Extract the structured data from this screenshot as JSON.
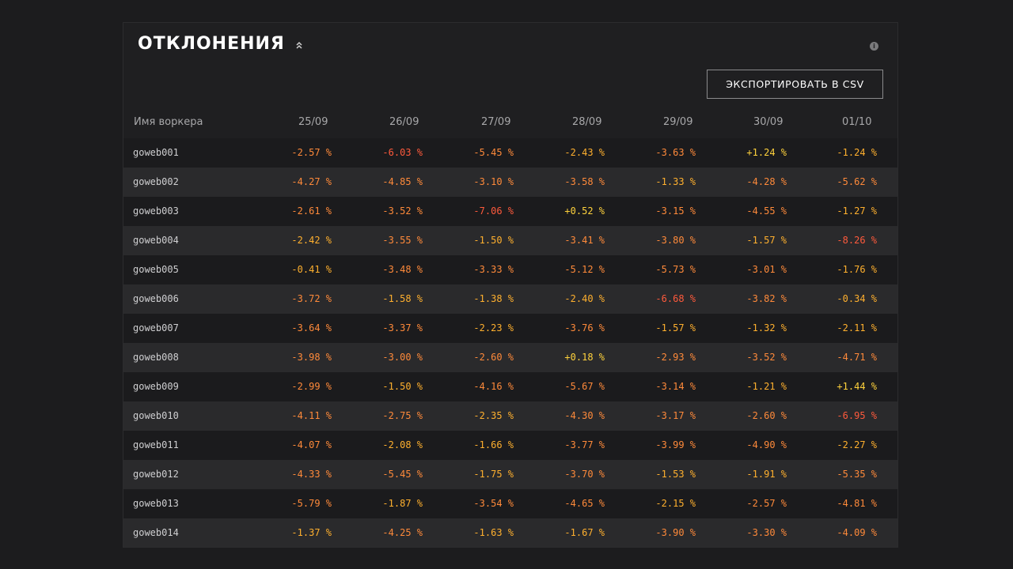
{
  "panel": {
    "title": "ОТКЛОНЕНИЯ",
    "export_label": "ЭКСПОРТИРОВАТЬ В CSV",
    "info_glyph": "i"
  },
  "table": {
    "name_header": "Имя воркера",
    "dates": [
      "25/09",
      "26/09",
      "27/09",
      "28/09",
      "29/09",
      "30/09",
      "01/10"
    ],
    "rows": [
      {
        "name": "goweb001",
        "values": [
          "-2.57 %",
          "-6.03 %",
          "-5.45 %",
          "-2.43 %",
          "-3.63 %",
          "+1.24 %",
          "-1.24 %"
        ]
      },
      {
        "name": "goweb002",
        "values": [
          "-4.27 %",
          "-4.85 %",
          "-3.10 %",
          "-3.58 %",
          "-1.33 %",
          "-4.28 %",
          "-5.62 %"
        ]
      },
      {
        "name": "goweb003",
        "values": [
          "-2.61 %",
          "-3.52 %",
          "-7.06 %",
          "+0.52 %",
          "-3.15 %",
          "-4.55 %",
          "-1.27 %"
        ]
      },
      {
        "name": "goweb004",
        "values": [
          "-2.42 %",
          "-3.55 %",
          "-1.50 %",
          "-3.41 %",
          "-3.80 %",
          "-1.57 %",
          "-8.26 %"
        ]
      },
      {
        "name": "goweb005",
        "values": [
          "-0.41 %",
          "-3.48 %",
          "-3.33 %",
          "-5.12 %",
          "-5.73 %",
          "-3.01 %",
          "-1.76 %"
        ]
      },
      {
        "name": "goweb006",
        "values": [
          "-3.72 %",
          "-1.58 %",
          "-1.38 %",
          "-2.40 %",
          "-6.68 %",
          "-3.82 %",
          "-0.34 %"
        ]
      },
      {
        "name": "goweb007",
        "values": [
          "-3.64 %",
          "-3.37 %",
          "-2.23 %",
          "-3.76 %",
          "-1.57 %",
          "-1.32 %",
          "-2.11 %"
        ]
      },
      {
        "name": "goweb008",
        "values": [
          "-3.98 %",
          "-3.00 %",
          "-2.60 %",
          "+0.18 %",
          "-2.93 %",
          "-3.52 %",
          "-4.71 %"
        ]
      },
      {
        "name": "goweb009",
        "values": [
          "-2.99 %",
          "-1.50 %",
          "-4.16 %",
          "-5.67 %",
          "-3.14 %",
          "-1.21 %",
          "+1.44 %"
        ]
      },
      {
        "name": "goweb010",
        "values": [
          "-4.11 %",
          "-2.75 %",
          "-2.35 %",
          "-4.30 %",
          "-3.17 %",
          "-2.60 %",
          "-6.95 %"
        ]
      },
      {
        "name": "goweb011",
        "values": [
          "-4.07 %",
          "-2.08 %",
          "-1.66 %",
          "-3.77 %",
          "-3.99 %",
          "-4.90 %",
          "-2.27 %"
        ]
      },
      {
        "name": "goweb012",
        "values": [
          "-4.33 %",
          "-5.45 %",
          "-1.75 %",
          "-3.70 %",
          "-1.53 %",
          "-1.91 %",
          "-5.35 %"
        ]
      },
      {
        "name": "goweb013",
        "values": [
          "-5.79 %",
          "-1.87 %",
          "-3.54 %",
          "-4.65 %",
          "-2.15 %",
          "-2.57 %",
          "-4.81 %"
        ]
      },
      {
        "name": "goweb014",
        "values": [
          "-1.37 %",
          "-4.25 %",
          "-1.63 %",
          "-1.67 %",
          "-3.90 %",
          "-3.30 %",
          "-4.09 %"
        ]
      }
    ]
  },
  "colors": {
    "positive": "#ffd23c",
    "low": "#ffb02e",
    "medium": "#ff8a3a",
    "high": "#ff5a3c"
  }
}
